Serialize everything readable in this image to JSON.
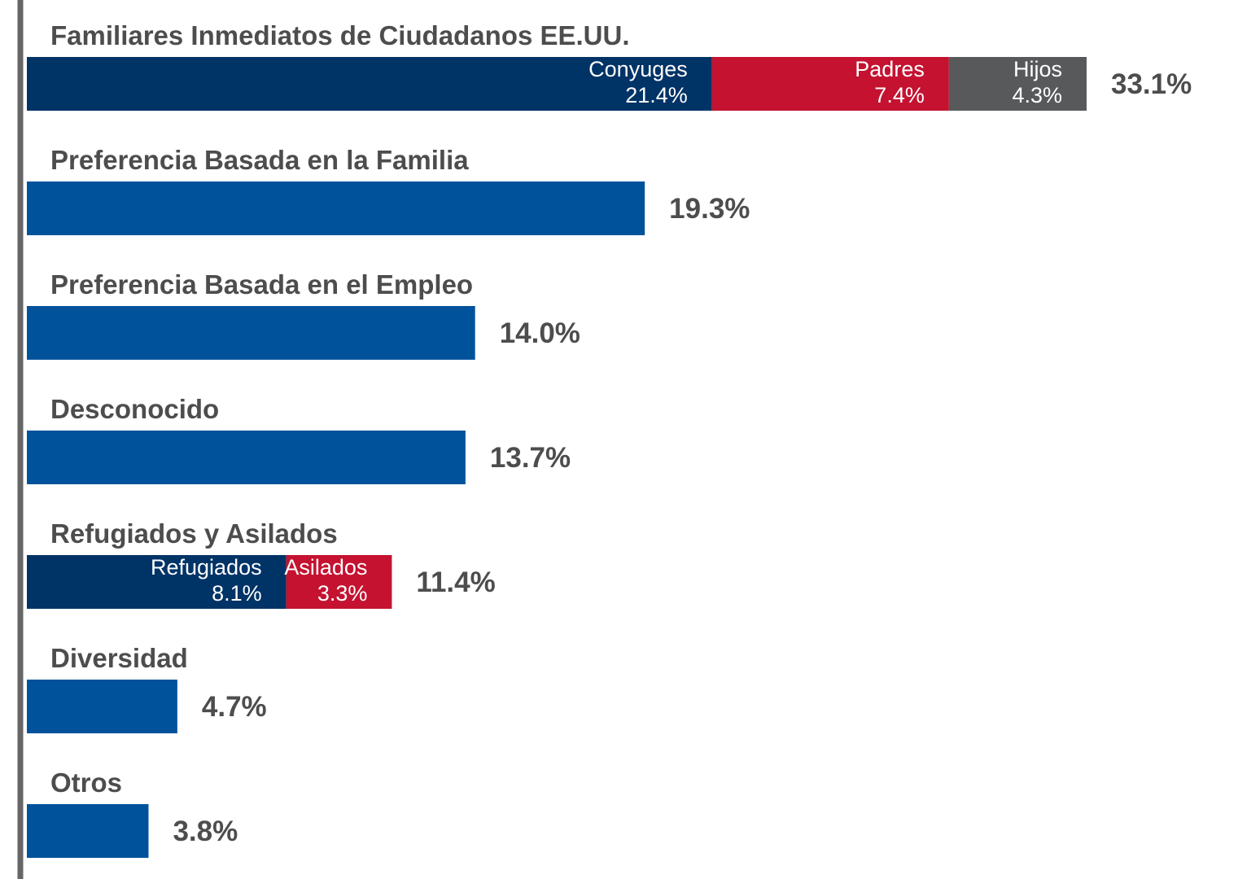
{
  "chart_data": {
    "type": "bar",
    "orientation": "horizontal",
    "stacked": true,
    "unit": "%",
    "xlim": [
      0,
      33.1
    ],
    "grid": false,
    "legend": "none",
    "colors": {
      "primary": "#00529b",
      "navy": "#003366",
      "red": "#c41230",
      "gray": "#58595b",
      "axis": "#666666",
      "text": "#4d4d4d"
    },
    "categories": [
      {
        "label": "Familiares Inmediatos de Ciudadanos EE.UU.",
        "total": 33.1,
        "total_label": "33.1%",
        "segments": [
          {
            "name": "Conyuges",
            "value": 21.4,
            "value_label": "21.4%",
            "color": "#003366"
          },
          {
            "name": "Padres",
            "value": 7.4,
            "value_label": "7.4%",
            "color": "#c41230"
          },
          {
            "name": "Hijos",
            "value": 4.3,
            "value_label": "4.3%",
            "color": "#58595b"
          }
        ]
      },
      {
        "label": "Preferencia Basada en la Familia",
        "total": 19.3,
        "total_label": "19.3%",
        "segments": [
          {
            "value": 19.3,
            "color": "#00529b"
          }
        ]
      },
      {
        "label": "Preferencia Basada en el Empleo",
        "total": 14.0,
        "total_label": "14.0%",
        "segments": [
          {
            "value": 14.0,
            "color": "#00529b"
          }
        ]
      },
      {
        "label": "Desconocido",
        "total": 13.7,
        "total_label": "13.7%",
        "segments": [
          {
            "value": 13.7,
            "color": "#00529b"
          }
        ]
      },
      {
        "label": "Refugiados y Asilados",
        "total": 11.4,
        "total_label": "11.4%",
        "segments": [
          {
            "name": "Refugiados",
            "value": 8.1,
            "value_label": "8.1%",
            "color": "#003366"
          },
          {
            "name": "Asilados",
            "value": 3.3,
            "value_label": "3.3%",
            "color": "#c41230"
          }
        ]
      },
      {
        "label": "Diversidad",
        "total": 4.7,
        "total_label": "4.7%",
        "segments": [
          {
            "value": 4.7,
            "color": "#00529b"
          }
        ]
      },
      {
        "label": "Otros",
        "total": 3.8,
        "total_label": "3.8%",
        "segments": [
          {
            "value": 3.8,
            "color": "#00529b"
          }
        ]
      }
    ]
  }
}
